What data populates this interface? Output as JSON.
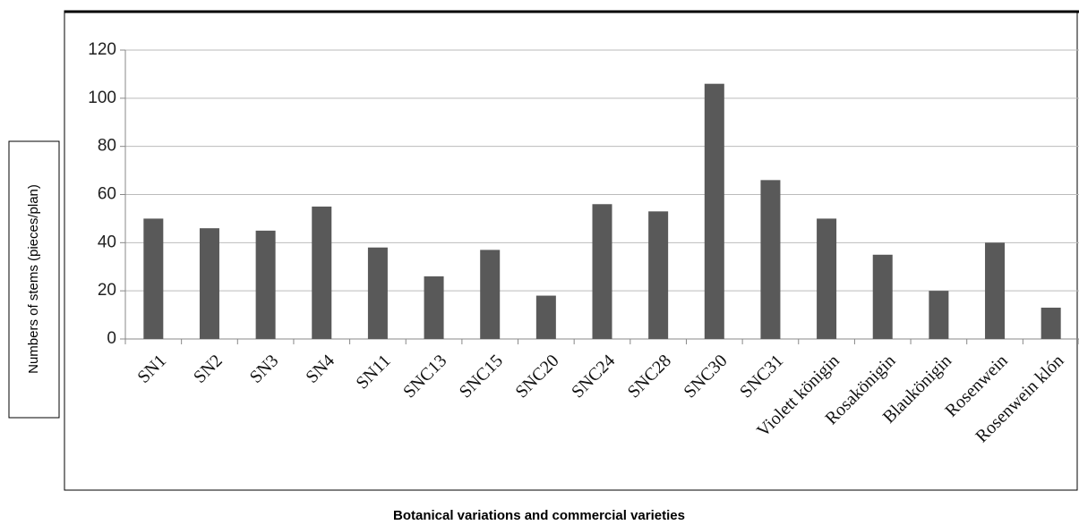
{
  "chart_data": {
    "type": "bar",
    "x_label": "Botanical variations and commercial varieties",
    "y_label": "Numbers of stems (pieces/plan)",
    "categories": [
      "SN1",
      "SN2",
      "SN3",
      "SN4",
      "SN11",
      "SNC13",
      "SNC15",
      "SNC20",
      "SNC24",
      "SNC28",
      "SNC30",
      "SNC31",
      "Violett königin",
      "Rosakönigin",
      "Blaukönigin",
      "Rosenwein",
      "Rosenwein klón"
    ],
    "values": [
      50,
      46,
      45,
      55,
      38,
      26,
      37,
      18,
      56,
      53,
      106,
      66,
      50,
      35,
      20,
      40,
      13
    ],
    "color": "#595959",
    "ylim": [
      0,
      120
    ],
    "yticks": [
      0,
      20,
      40,
      60,
      80,
      100,
      120
    ],
    "grid": true
  }
}
